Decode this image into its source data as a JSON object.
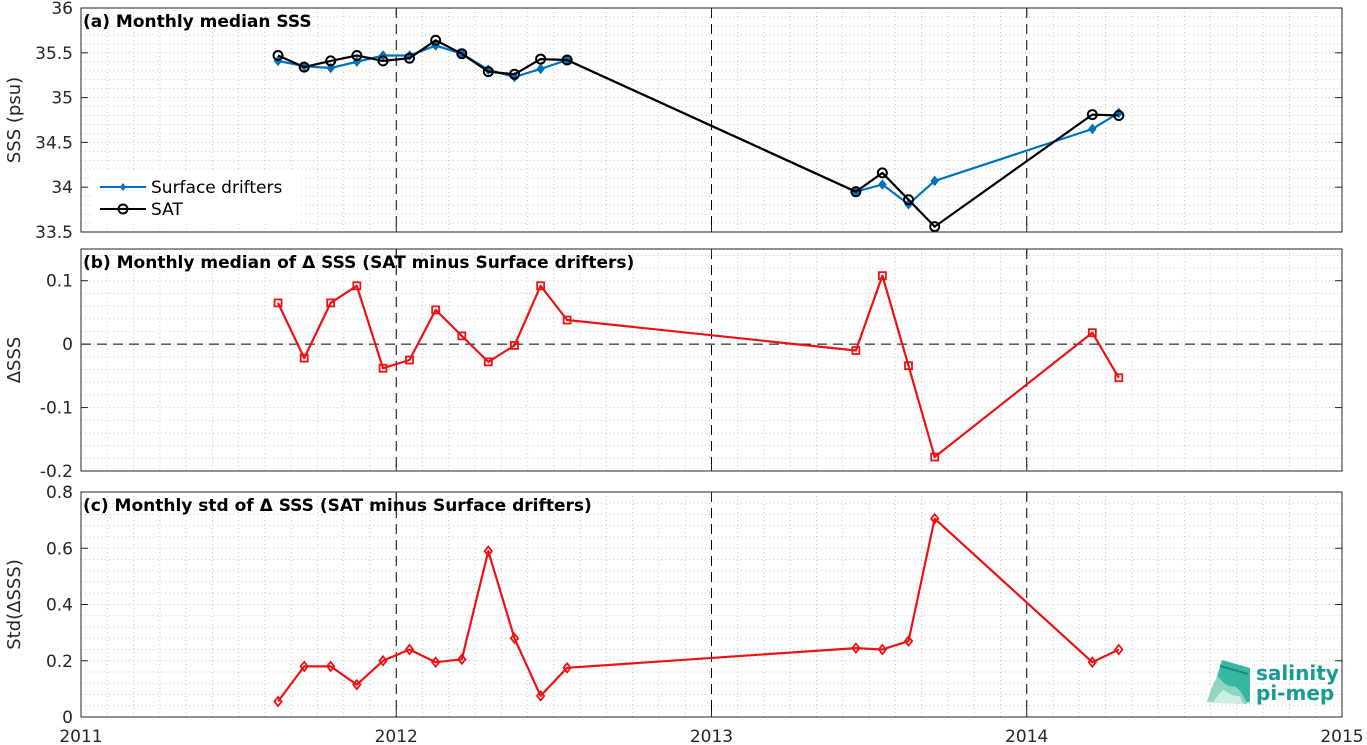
{
  "colors": {
    "drifters": "#0072BD",
    "sat": "#000000",
    "delta": "#EE1111",
    "logo": "#1a9a93"
  },
  "x_ticks": [
    {
      "value": 2011,
      "label": "2011"
    },
    {
      "value": 2012,
      "label": "2012"
    },
    {
      "value": 2013,
      "label": "2013"
    },
    {
      "value": 2014,
      "label": "2014"
    },
    {
      "value": 2015,
      "label": "2015"
    }
  ],
  "logo": {
    "line1": "salinity",
    "line2": "pi-mep"
  },
  "chart_data": [
    {
      "type": "line",
      "title": "(a) Monthly median SSS",
      "ylabel": "SSS (psu)",
      "xlim": [
        2011,
        2015
      ],
      "ylim": [
        33.5,
        36
      ],
      "yticks": [
        33.5,
        34,
        34.5,
        35,
        35.5,
        36
      ],
      "ytick_labels": [
        "33.5",
        "34",
        "34.5",
        "35",
        "35.5",
        "36"
      ],
      "grid": true,
      "legend_position": "left",
      "series": [
        {
          "name": "Surface drifters",
          "marker": "diamond",
          "x": [
            2011.625,
            2011.708,
            2011.792,
            2011.875,
            2011.958,
            2012.042,
            2012.125,
            2012.208,
            2012.292,
            2012.375,
            2012.458,
            2012.542,
            2013.458,
            2013.542,
            2013.625,
            2013.708,
            2014.208,
            2014.292
          ],
          "y": [
            35.41,
            35.35,
            35.33,
            35.4,
            35.47,
            35.47,
            35.58,
            35.49,
            35.31,
            35.23,
            35.32,
            35.42,
            33.95,
            34.03,
            33.81,
            34.07,
            34.65,
            34.83
          ]
        },
        {
          "name": "SAT",
          "marker": "circle",
          "x": [
            2011.625,
            2011.708,
            2011.792,
            2011.875,
            2011.958,
            2012.042,
            2012.125,
            2012.208,
            2012.292,
            2012.375,
            2012.458,
            2012.542,
            2013.458,
            2013.542,
            2013.625,
            2013.708,
            2014.208,
            2014.292
          ],
          "y": [
            35.47,
            35.34,
            35.41,
            35.47,
            35.41,
            35.44,
            35.64,
            35.49,
            35.29,
            35.26,
            35.43,
            35.42,
            33.95,
            34.16,
            33.86,
            33.56,
            34.81,
            34.8
          ]
        }
      ]
    },
    {
      "type": "line",
      "title": "(b) Monthly median of Δ SSS (SAT minus Surface drifters)",
      "ylabel": "ΔSSS",
      "xlim": [
        2011,
        2015
      ],
      "ylim": [
        -0.2,
        0.15
      ],
      "yticks": [
        -0.2,
        -0.1,
        0,
        0.1
      ],
      "ytick_labels": [
        "-0.2",
        "-0.1",
        "0",
        "0.1"
      ],
      "grid": true,
      "zero_line": true,
      "series": [
        {
          "marker": "square",
          "x": [
            2011.625,
            2011.708,
            2011.792,
            2011.875,
            2011.958,
            2012.042,
            2012.125,
            2012.208,
            2012.292,
            2012.375,
            2012.458,
            2012.542,
            2013.458,
            2013.542,
            2013.625,
            2013.708,
            2014.208,
            2014.292
          ],
          "y": [
            0.065,
            -0.022,
            0.065,
            0.092,
            -0.038,
            -0.025,
            0.054,
            0.013,
            -0.028,
            -0.002,
            0.092,
            0.038,
            -0.01,
            0.108,
            -0.034,
            -0.178,
            0.018,
            -0.053
          ]
        }
      ]
    },
    {
      "type": "line",
      "title": "(c) Monthly std of Δ SSS (SAT minus Surface drifters)",
      "ylabel": "Std(ΔSSS)",
      "xlim": [
        2011,
        2015
      ],
      "ylim": [
        0,
        0.8
      ],
      "yticks": [
        0,
        0.2,
        0.4,
        0.6,
        0.8
      ],
      "ytick_labels": [
        "0",
        "0.2",
        "0.4",
        "0.6",
        "0.8"
      ],
      "grid": true,
      "series": [
        {
          "marker": "diamond",
          "x": [
            2011.625,
            2011.708,
            2011.792,
            2011.875,
            2011.958,
            2012.042,
            2012.125,
            2012.208,
            2012.292,
            2012.375,
            2012.458,
            2012.542,
            2013.458,
            2013.542,
            2013.625,
            2013.708,
            2014.208,
            2014.292
          ],
          "y": [
            0.055,
            0.18,
            0.18,
            0.115,
            0.2,
            0.24,
            0.195,
            0.205,
            0.59,
            0.28,
            0.075,
            0.175,
            0.245,
            0.24,
            0.27,
            0.705,
            0.195,
            0.24
          ]
        }
      ]
    }
  ]
}
